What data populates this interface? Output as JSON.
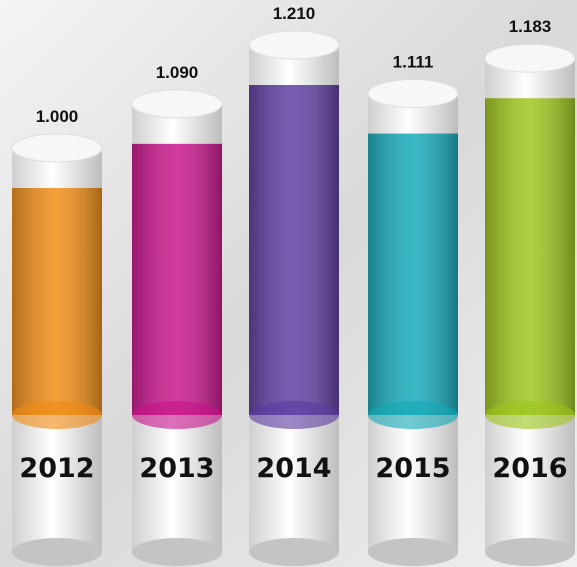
{
  "chart_data": {
    "type": "cylinder",
    "categories": [
      "2012",
      "2013",
      "2014",
      "2015",
      "2016"
    ],
    "values": [
      1000,
      1090,
      1210,
      1111,
      1183
    ],
    "value_labels": [
      "1.000",
      "1.090",
      "1.210",
      "1.111",
      "1.183"
    ],
    "colors": [
      "#f08a10",
      "#c8108a",
      "#5a3aa0",
      "#10a8b8",
      "#9cc418"
    ]
  }
}
